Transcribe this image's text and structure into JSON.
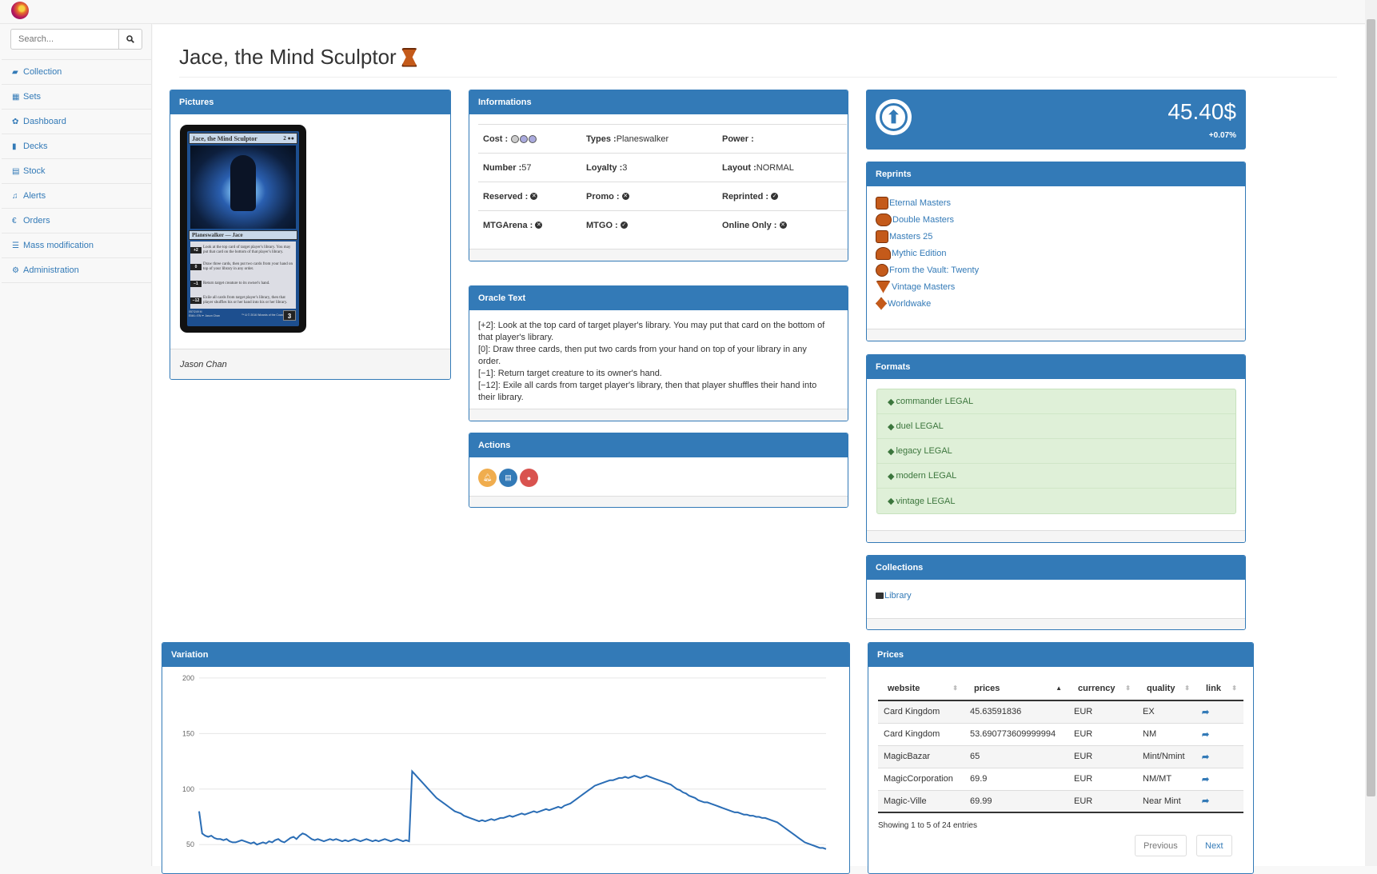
{
  "search": {
    "placeholder": "Search..."
  },
  "nav": [
    {
      "label": "Collection",
      "icon": "folder-open-icon"
    },
    {
      "label": "Sets",
      "icon": "table-icon"
    },
    {
      "label": "Dashboard",
      "icon": "dashboard-icon"
    },
    {
      "label": "Decks",
      "icon": "book-icon"
    },
    {
      "label": "Stock",
      "icon": "file-icon"
    },
    {
      "label": "Alerts",
      "icon": "bell-icon"
    },
    {
      "label": "Orders",
      "icon": "euro-icon"
    },
    {
      "label": "Mass modification",
      "icon": "list-icon"
    },
    {
      "label": "Administration",
      "icon": "cogs-icon"
    }
  ],
  "card": {
    "title": "Jace, the Mind Sculptor"
  },
  "pictures": {
    "heading": "Pictures",
    "artist": "Jason Chan",
    "card_name": "Jace, the Mind Sculptor",
    "card_type": "Planeswalker — Jace",
    "loyalty_cost": "3",
    "abilities": [
      {
        "cost": "+2",
        "text": "Look at the top card of target player's library. You may put that card on the bottom of that player's library."
      },
      {
        "cost": "0",
        "text": "Draw three cards, then put two cards from your hand on top of your library in any order."
      },
      {
        "cost": "−1",
        "text": "Return target creature to its owner's hand."
      },
      {
        "cost": "−12",
        "text": "Exile all cards from target player's library, then that player shuffles his or her hand into his or her library."
      }
    ],
    "footer_left": "057/249 M",
    "footer_set": "EMA • EN ✒ Jason Chan",
    "footer_right": "™ & © 2016 Wizards of the Coast"
  },
  "info": {
    "heading": "Informations",
    "cost_label": "Cost :",
    "types_label": "Types :",
    "types_value": "Planeswalker",
    "power_label": "Power :",
    "number_label": "Number :",
    "number_value": "57",
    "loyalty_label": "Loyalty :",
    "loyalty_value": "3",
    "layout_label": "Layout :",
    "layout_value": "NORMAL",
    "reserved_label": "Reserved :",
    "promo_label": "Promo :",
    "reprinted_label": "Reprinted :",
    "mtgarena_label": "MTGArena :",
    "mtgo_label": "MTGO :",
    "online_label": "Online Only :"
  },
  "oracle": {
    "heading": "Oracle Text",
    "lines": [
      "[+2]: Look at the top card of target player's library. You may put that card on the bottom of that player's library.",
      "[0]: Draw three cards, then put two cards from your hand on top of your library in any order.",
      "[−1]: Return target creature to its owner's hand.",
      "[−12]: Exile all cards from target player's library, then that player shuffles their hand into their library."
    ]
  },
  "actions": {
    "heading": "Actions",
    "colors": [
      "#f0ad4e",
      "#337ab7",
      "#d9534f"
    ]
  },
  "price_box": {
    "value": "45.40$",
    "change": "+0.07%"
  },
  "reprints": {
    "heading": "Reprints",
    "items": [
      "Eternal Masters",
      "Double Masters",
      "Masters 25",
      "Mythic Edition",
      "From the Vault: Twenty",
      "Vintage Masters",
      "Worldwake"
    ]
  },
  "formats": {
    "heading": "Formats",
    "items": [
      "commander LEGAL",
      "duel LEGAL",
      "legacy LEGAL",
      "modern LEGAL",
      "vintage LEGAL"
    ]
  },
  "collections": {
    "heading": "Collections",
    "items": [
      "Library"
    ]
  },
  "variation": {
    "heading": "Variation"
  },
  "chart_data": {
    "type": "line",
    "ylim": [
      30,
      210
    ],
    "yticks": [
      200,
      150,
      100,
      50
    ],
    "values": [
      80,
      60,
      58,
      57,
      58,
      56,
      55,
      55,
      54,
      55,
      53,
      52,
      52,
      53,
      54,
      53,
      52,
      51,
      52,
      50,
      51,
      52,
      51,
      53,
      52,
      54,
      55,
      53,
      52,
      54,
      56,
      57,
      55,
      58,
      60,
      59,
      57,
      55,
      54,
      55,
      54,
      53,
      54,
      55,
      54,
      55,
      54,
      53,
      54,
      53,
      54,
      55,
      54,
      53,
      54,
      55,
      54,
      53,
      54,
      53,
      54,
      55,
      54,
      53,
      54,
      55,
      54,
      53,
      54,
      53,
      116,
      113,
      110,
      107,
      104,
      101,
      98,
      95,
      92,
      90,
      88,
      86,
      84,
      82,
      80,
      79,
      78,
      76,
      75,
      74,
      73,
      72,
      71,
      72,
      71,
      72,
      73,
      72,
      73,
      74,
      74,
      75,
      76,
      75,
      76,
      77,
      78,
      77,
      78,
      79,
      80,
      79,
      80,
      81,
      82,
      81,
      82,
      83,
      84,
      83,
      85,
      86,
      87,
      89,
      91,
      93,
      95,
      97,
      99,
      101,
      103,
      104,
      105,
      106,
      107,
      108,
      108,
      109,
      110,
      110,
      111,
      110,
      111,
      112,
      111,
      110,
      111,
      112,
      111,
      110,
      109,
      108,
      107,
      106,
      105,
      104,
      102,
      100,
      99,
      97,
      96,
      94,
      93,
      92,
      90,
      89,
      88,
      88,
      87,
      86,
      85,
      84,
      83,
      82,
      81,
      80,
      79,
      79,
      78,
      77,
      77,
      76,
      76,
      75,
      75,
      74,
      74,
      73,
      72,
      71,
      70,
      68,
      66,
      64,
      62,
      60,
      58,
      56,
      54,
      52,
      51,
      50,
      49,
      48,
      47,
      47,
      46
    ]
  },
  "prices": {
    "heading": "Prices",
    "columns": [
      "website",
      "prices",
      "currency",
      "quality",
      "link"
    ],
    "rows": [
      [
        "Card Kingdom",
        "45.63591836",
        "EUR",
        "EX"
      ],
      [
        "Card Kingdom",
        "53.690773609999994",
        "EUR",
        "NM"
      ],
      [
        "MagicBazar",
        "65",
        "EUR",
        "Mint/Nmint"
      ],
      [
        "MagicCorporation",
        "69.9",
        "EUR",
        "NM/MT"
      ],
      [
        "Magic-Ville",
        "69.99",
        "EUR",
        "Near Mint"
      ]
    ],
    "showing": "Showing 1 to 5 of 24 entries",
    "prev": "Previous",
    "next": "Next"
  }
}
